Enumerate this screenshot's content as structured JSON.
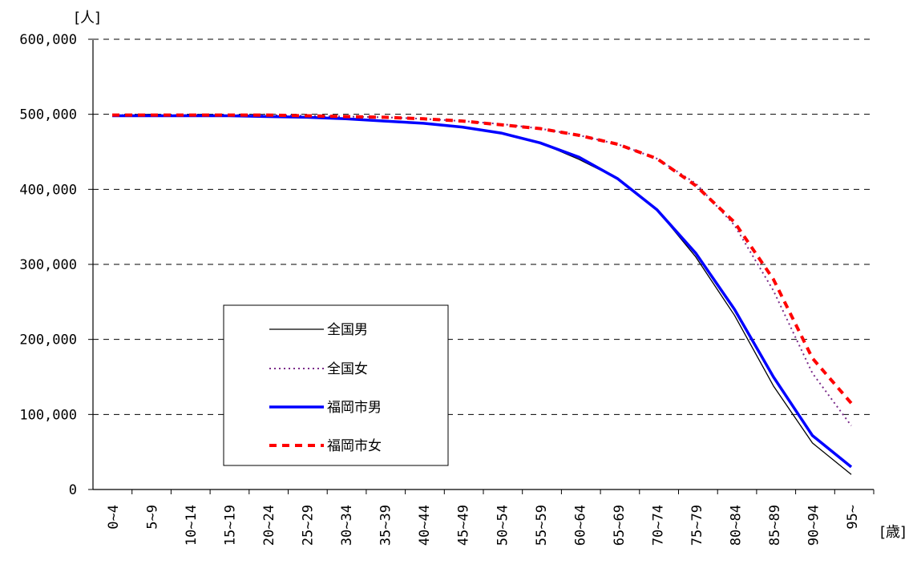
{
  "chart_data": {
    "type": "line",
    "ylabel": "[人]",
    "xlabel": "[歳]",
    "ylim": [
      0,
      600000
    ],
    "yticks": [
      "0",
      "100,000",
      "200,000",
      "300,000",
      "400,000",
      "500,000",
      "600,000"
    ],
    "ytick_values": [
      0,
      100000,
      200000,
      300000,
      400000,
      500000,
      600000
    ],
    "grid": "horizontal-dashed",
    "legend_position": "lower-left",
    "categories": [
      "0~4",
      "5~9",
      "10~14",
      "15~19",
      "20~24",
      "25~29",
      "30~34",
      "35~39",
      "40~44",
      "45~49",
      "50~54",
      "55~59",
      "60~64",
      "65~69",
      "70~74",
      "75~79",
      "80~84",
      "85~89",
      "90~94",
      "95~"
    ],
    "series": [
      {
        "name": "全国男",
        "color": "#000000",
        "style": "solid-thin",
        "values": [
          498000,
          498000,
          498000,
          498000,
          497000,
          496000,
          494000,
          491000,
          488000,
          483000,
          475000,
          462000,
          440000,
          414000,
          373000,
          310000,
          232000,
          138000,
          62000,
          20000
        ]
      },
      {
        "name": "全国女",
        "color": "#7b2c8a",
        "style": "dotted",
        "values": [
          499000,
          499000,
          499000,
          499000,
          499000,
          498000,
          497000,
          496000,
          494000,
          491000,
          487000,
          481000,
          472000,
          460000,
          441000,
          408000,
          352000,
          265000,
          155000,
          85000
        ]
      },
      {
        "name": "福岡市男",
        "color": "#0000ff",
        "style": "solid-thick",
        "values": [
          498000,
          498000,
          498000,
          498000,
          497000,
          496000,
          494000,
          491000,
          488000,
          483000,
          475000,
          462000,
          443000,
          414000,
          373000,
          315000,
          240000,
          150000,
          72000,
          30000
        ]
      },
      {
        "name": "福岡市女",
        "color": "#ff0000",
        "style": "dashed-thick",
        "values": [
          499000,
          499000,
          499000,
          499000,
          499000,
          498000,
          497000,
          496000,
          494000,
          491000,
          486000,
          481000,
          472000,
          460000,
          441000,
          405000,
          356000,
          280000,
          175000,
          115000
        ]
      }
    ]
  }
}
